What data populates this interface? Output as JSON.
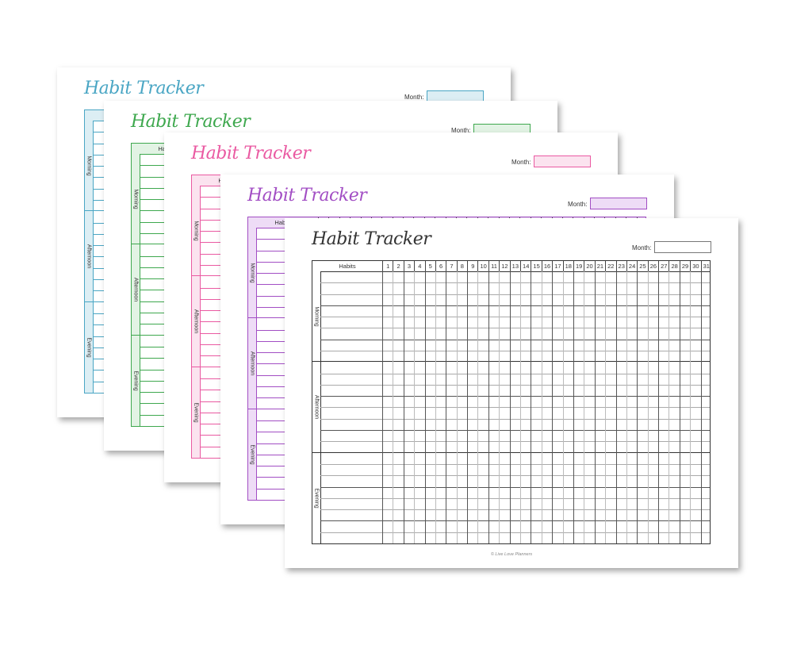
{
  "pages": [
    {
      "title": "Habit Tracker",
      "month_label": "Month:",
      "accent": "#4aa6c4",
      "fill": "#dceef4"
    },
    {
      "title": "Habit Tracker",
      "month_label": "Month:",
      "accent": "#3ea84e",
      "fill": "#e2f3e4"
    },
    {
      "title": "Habit Tracker",
      "month_label": "Month:",
      "accent": "#ea5aa2",
      "fill": "#fbe3ef"
    },
    {
      "title": "Habit Tracker",
      "month_label": "Month:",
      "accent": "#a24ec4",
      "fill": "#eedcf6"
    },
    {
      "title": "Habit Tracker",
      "month_label": "Month:",
      "accent": "#333333",
      "fill": "#ffffff"
    }
  ],
  "table": {
    "habits_header": "Habits",
    "days": [
      "1",
      "2",
      "3",
      "4",
      "5",
      "6",
      "7",
      "8",
      "9",
      "10",
      "11",
      "12",
      "13",
      "14",
      "15",
      "16",
      "17",
      "18",
      "19",
      "20",
      "21",
      "22",
      "23",
      "24",
      "25",
      "26",
      "27",
      "28",
      "29",
      "30",
      "31"
    ],
    "sections": [
      "Morning",
      "Afternoon",
      "Evening"
    ]
  },
  "footer": "© Live Love Planners"
}
